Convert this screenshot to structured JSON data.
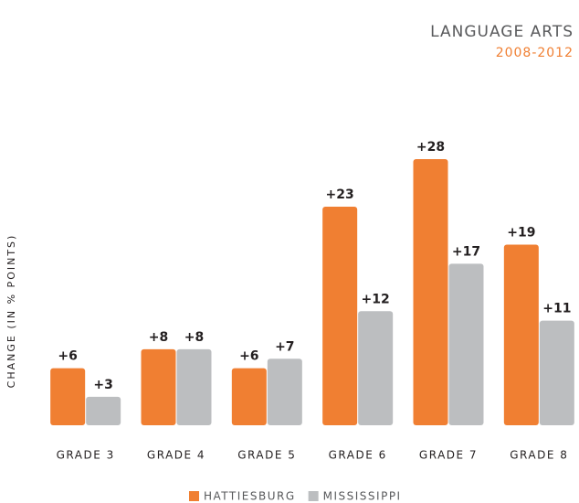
{
  "chart_data": {
    "type": "bar",
    "title": "LANGUAGE ARTS",
    "subtitle": "2008-2012",
    "y_label": "CHANGE (IN % POINTS)",
    "categories": [
      "GRADE 3",
      "GRADE 4",
      "GRADE 5",
      "GRADE 6",
      "GRADE 7",
      "GRADE 8"
    ],
    "series": [
      {
        "name": "HATTIESBURG",
        "color": "#f07f32",
        "values": [
          6,
          8,
          6,
          23,
          28,
          19
        ],
        "value_labels": [
          "+6",
          "+8",
          "+6",
          "+23",
          "+28",
          "+19"
        ]
      },
      {
        "name": "MISSISSIPPI",
        "color": "#bcbec0",
        "values": [
          3,
          8,
          7,
          12,
          17,
          11
        ],
        "value_labels": [
          "+3",
          "+8",
          "+7",
          "+12",
          "+17",
          "+11"
        ]
      }
    ],
    "legend": "bottom"
  }
}
